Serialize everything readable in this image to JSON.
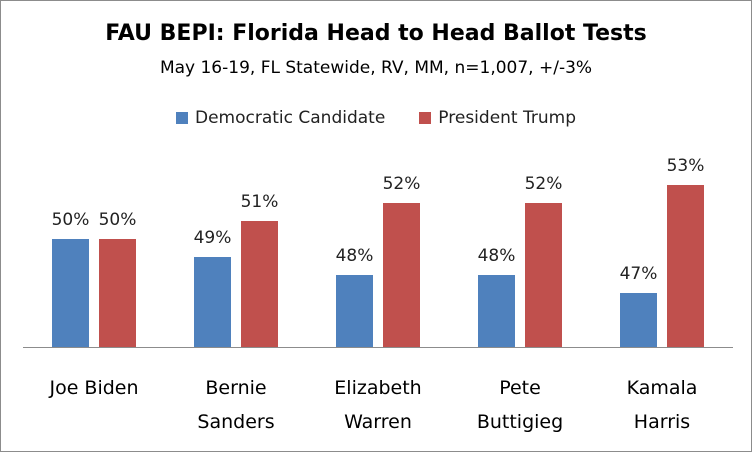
{
  "chart_data": {
    "type": "bar",
    "title": "FAU BEPI: Florida Head to Head Ballot Tests",
    "subtitle": "May 16-19, FL Statewide, RV, MM, n=1,007, +/-3%",
    "categories": [
      [
        "Joe Biden"
      ],
      [
        "Bernie",
        "Sanders"
      ],
      [
        "Elizabeth",
        "Warren"
      ],
      [
        "Pete",
        "Buttigieg"
      ],
      [
        "Kamala",
        "Harris"
      ]
    ],
    "series": [
      {
        "name": "Democratic Candidate",
        "color": "#4f81bd",
        "values": [
          50,
          49,
          48,
          48,
          47
        ],
        "labels": [
          "50%",
          "49%",
          "48%",
          "48%",
          "47%"
        ]
      },
      {
        "name": "President Trump",
        "color": "#c0504d",
        "values": [
          50,
          51,
          52,
          52,
          53
        ],
        "labels": [
          "50%",
          "51%",
          "52%",
          "52%",
          "53%"
        ]
      }
    ],
    "ylim": [
      44,
      54
    ],
    "grid": false,
    "legend_position": "top-center"
  }
}
